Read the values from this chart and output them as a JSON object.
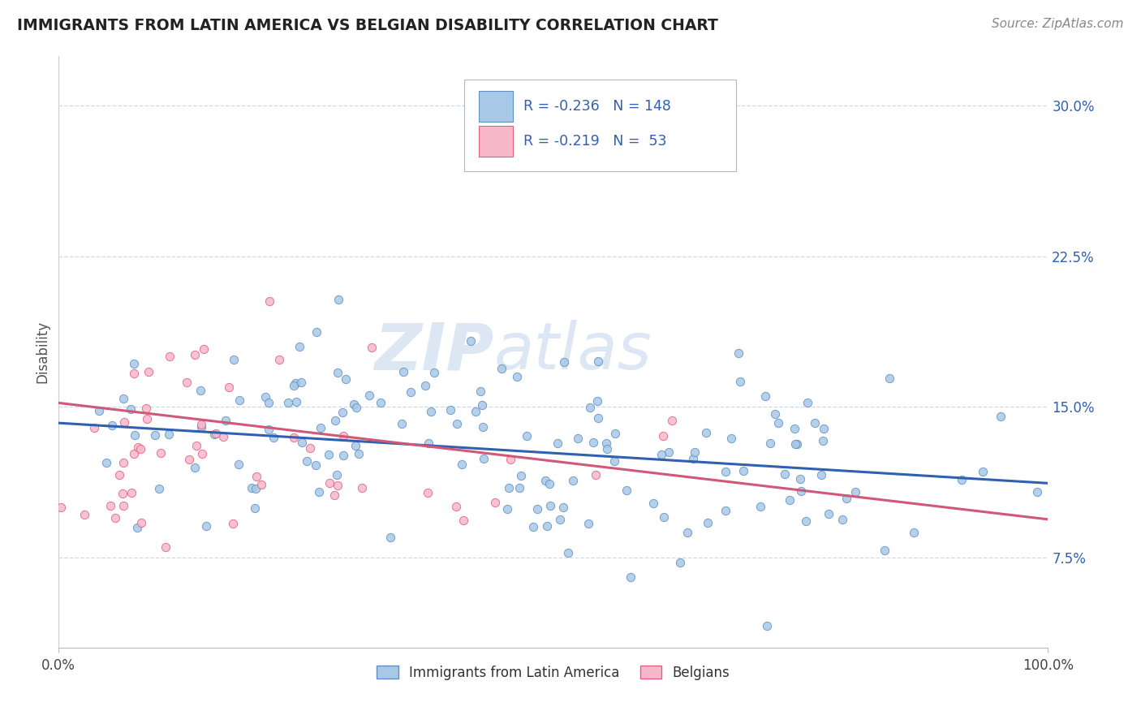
{
  "title": "IMMIGRANTS FROM LATIN AMERICA VS BELGIAN DISABILITY CORRELATION CHART",
  "source": "Source: ZipAtlas.com",
  "ylabel": "Disability",
  "xlim": [
    0.0,
    1.0
  ],
  "ylim": [
    0.03,
    0.325
  ],
  "yticks": [
    0.075,
    0.15,
    0.225,
    0.3
  ],
  "ytick_labels": [
    "7.5%",
    "15.0%",
    "22.5%",
    "30.0%"
  ],
  "xticks": [
    0.0,
    1.0
  ],
  "xtick_labels": [
    "0.0%",
    "100.0%"
  ],
  "bottom_legend": [
    {
      "label": "Immigrants from Latin America"
    },
    {
      "label": "Belgians"
    }
  ],
  "series1_color": "#a8c8e8",
  "series2_color": "#f8b8cc",
  "series1_edge": "#6090c0",
  "series2_edge": "#e06080",
  "trendline1_color": "#3060b0",
  "trendline2_color": "#d05878",
  "watermark_zip": "ZIP",
  "watermark_atlas": "atlas",
  "watermark_color_zip": "#b8cce0",
  "watermark_color_atlas": "#b8cce0",
  "background_color": "#ffffff",
  "grid_color": "#d0d8e8",
  "R1": -0.236,
  "N1": 148,
  "R2": -0.219,
  "N2": 53,
  "legend_R1": "R = -0.236",
  "legend_N1": "N = 148",
  "legend_R2": "R = -0.219",
  "legend_N2": "N =  53",
  "legend_text_color": "#3060b0",
  "title_color": "#222222",
  "source_color": "#888888",
  "ytick_color": "#3060b0",
  "xtick_color": "#444444"
}
